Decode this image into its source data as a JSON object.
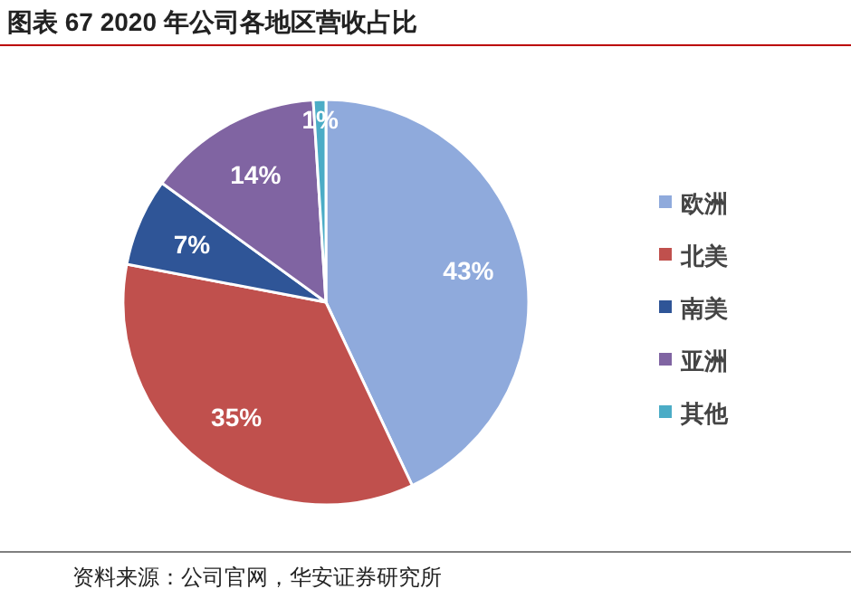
{
  "chart_data": {
    "type": "pie",
    "title": "图表 67 2020 年公司各地区营收占比",
    "categories": [
      "欧洲",
      "北美",
      "南美",
      "亚洲",
      "其他"
    ],
    "values": [
      43,
      35,
      7,
      14,
      1
    ],
    "value_labels": [
      "43%",
      "35%",
      "7%",
      "14%",
      "1%"
    ],
    "colors": [
      "#8faadc",
      "#c0504d",
      "#2f5597",
      "#8064a2",
      "#4bacc6"
    ],
    "legend": "right",
    "annotations": [
      "资料来源：公司官网，华安证券研究所"
    ]
  }
}
